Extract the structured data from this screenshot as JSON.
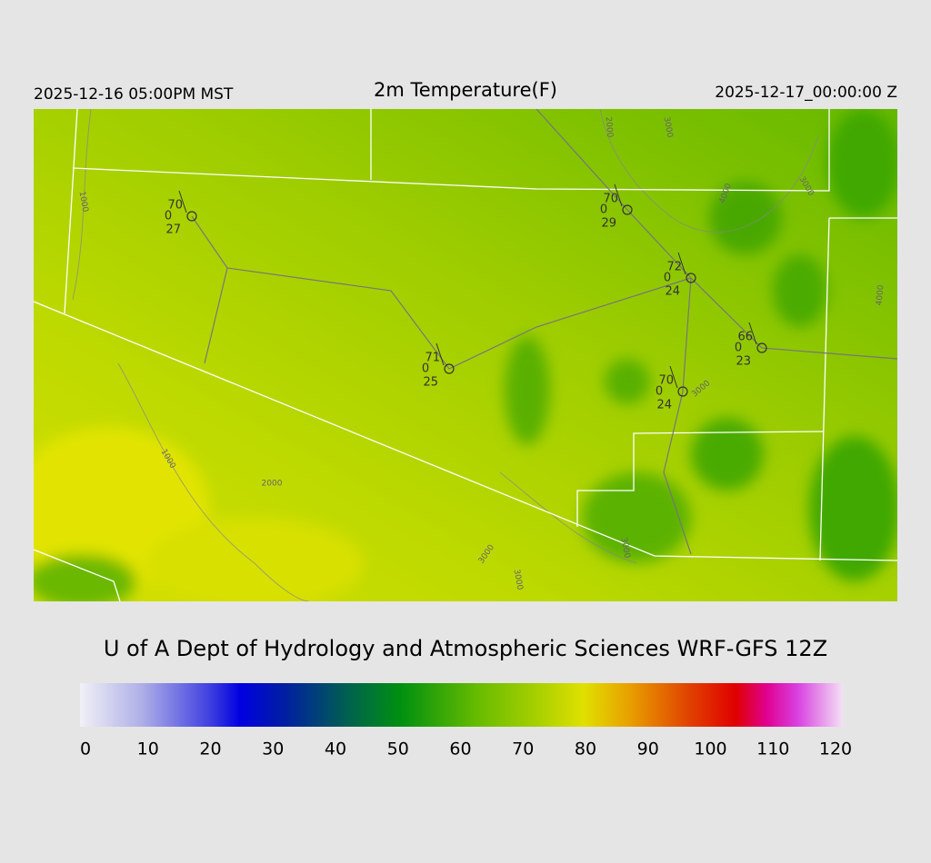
{
  "header": {
    "left": "2025-12-16 05:00PM MST",
    "title": "2m Temperature(F)",
    "right": "2025-12-17_00:00:00 Z"
  },
  "stations": [
    {
      "temp": "70",
      "wind": "0",
      "dewpoint": "27"
    },
    {
      "temp": "70",
      "wind": "0",
      "dewpoint": "29"
    },
    {
      "temp": "72",
      "wind": "0",
      "dewpoint": "24"
    },
    {
      "temp": "71",
      "wind": "0",
      "dewpoint": "25"
    },
    {
      "temp": "66",
      "wind": "0",
      "dewpoint": "23"
    },
    {
      "temp": "70",
      "wind": "0",
      "dewpoint": "24"
    }
  ],
  "contour_labels": [
    "1000",
    "2000",
    "3000",
    "4000",
    "3000",
    "4000",
    "1000",
    "2000",
    "3000",
    "3000",
    "3000",
    "3000"
  ],
  "footer": {
    "credit": "U of A Dept of Hydrology and Atmospheric Sciences WRF-GFS 12Z"
  },
  "colorbar": {
    "ticks": [
      "0",
      "10",
      "20",
      "30",
      "40",
      "50",
      "60",
      "70",
      "80",
      "90",
      "100",
      "110",
      "120"
    ]
  }
}
